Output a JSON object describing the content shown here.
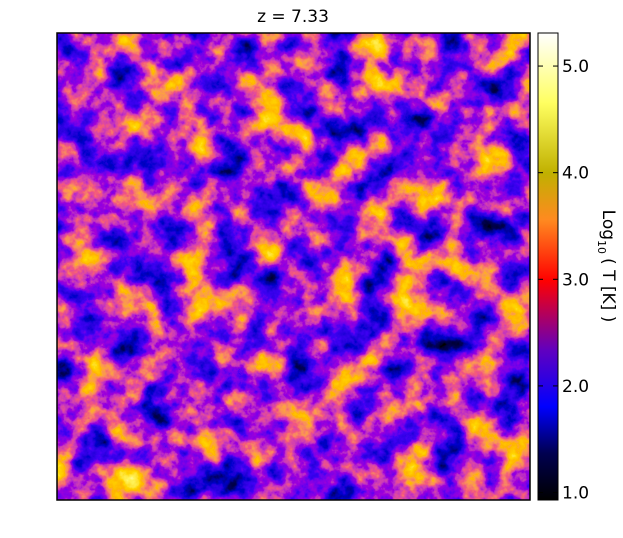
{
  "chart_data": {
    "type": "heatmap",
    "title": "z = 7.33",
    "colorbar": {
      "label": {
        "text": "Log",
        "subscript": "10",
        "suffix": "( T [K] )"
      },
      "clim": [
        0.93,
        5.31
      ],
      "ticks": [
        {
          "value": 1,
          "label": "1.0"
        },
        {
          "value": 2,
          "label": "2.0"
        },
        {
          "value": 3,
          "label": "3.0"
        },
        {
          "value": 4,
          "label": "4.0"
        },
        {
          "value": 5,
          "label": "5.0"
        }
      ]
    }
  }
}
